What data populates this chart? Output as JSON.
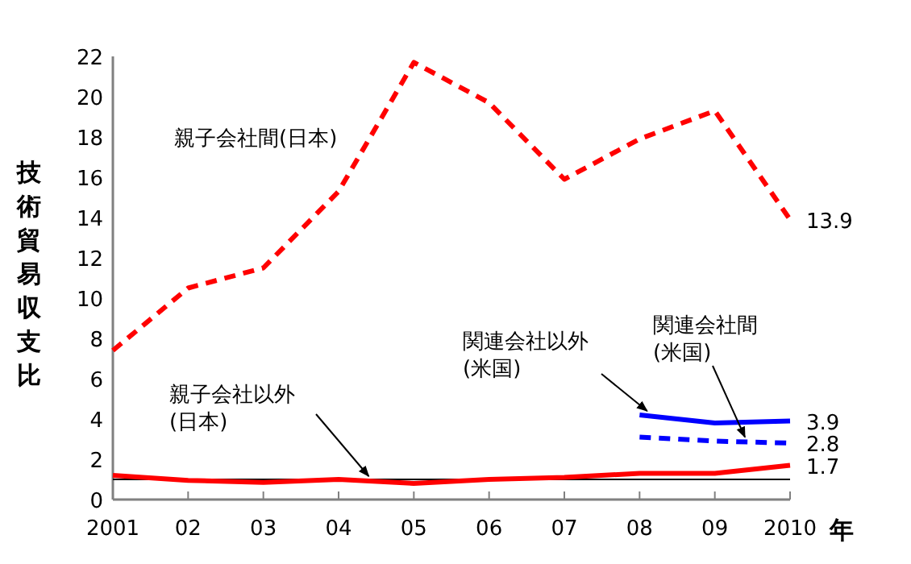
{
  "chart_data": {
    "type": "line",
    "xlabel": "年",
    "ylabel": "技術貿易収支比",
    "categories": [
      "2001",
      "02",
      "03",
      "04",
      "05",
      "06",
      "07",
      "08",
      "09",
      "2010"
    ],
    "ylim": [
      0,
      22
    ],
    "yticks": [
      0,
      2,
      4,
      6,
      8,
      10,
      12,
      14,
      16,
      18,
      20,
      22
    ],
    "grid": false,
    "marker": "none",
    "series": [
      {
        "name": "親子会社間(日本)",
        "color": "#ff0000",
        "line_style": "dashed",
        "values": [
          7.4,
          10.5,
          11.5,
          15.3,
          21.7,
          19.7,
          15.9,
          17.9,
          19.3,
          13.9
        ],
        "value_labels": [
          null,
          null,
          null,
          null,
          null,
          null,
          null,
          null,
          null,
          "13.9"
        ]
      },
      {
        "name": "親子会社以外\n(日本)",
        "color": "#ff0000",
        "line_style": "solid",
        "values": [
          1.2,
          0.95,
          0.85,
          1.0,
          0.8,
          1.0,
          1.1,
          1.3,
          1.3,
          1.7
        ],
        "value_labels": [
          null,
          null,
          null,
          null,
          null,
          null,
          null,
          null,
          null,
          "1.7"
        ]
      },
      {
        "name": "関連会社以外\n(米国)",
        "color": "#0000ff",
        "line_style": "solid",
        "values": [
          null,
          null,
          null,
          null,
          null,
          null,
          null,
          4.2,
          3.8,
          3.9
        ],
        "value_labels": [
          null,
          null,
          null,
          null,
          null,
          null,
          null,
          null,
          null,
          "3.9"
        ]
      },
      {
        "name": "関連会社間\n(米国)",
        "color": "#0000ff",
        "line_style": "dashed",
        "values": [
          null,
          null,
          null,
          null,
          null,
          null,
          null,
          3.1,
          2.9,
          2.8
        ],
        "value_labels": [
          null,
          null,
          null,
          null,
          null,
          null,
          null,
          null,
          null,
          "2.8"
        ]
      }
    ],
    "ref_lines": [
      {
        "axis": "y",
        "value": 1,
        "color": "#000000",
        "line_style": "solid"
      }
    ]
  }
}
